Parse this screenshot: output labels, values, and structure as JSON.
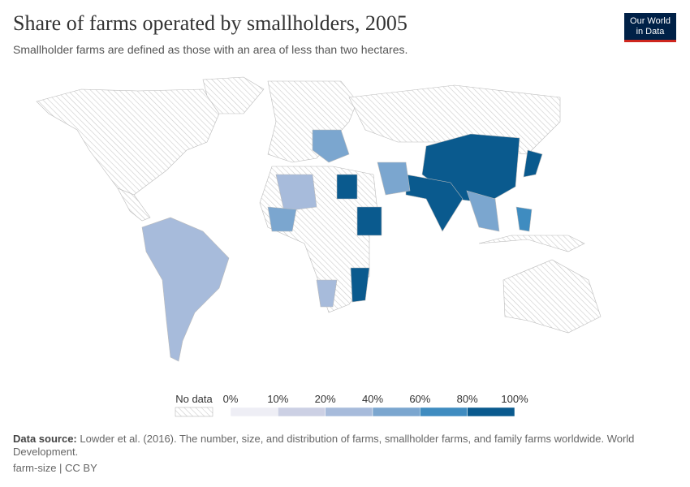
{
  "header": {
    "title": "Share of farms operated by smallholders, 2005",
    "subtitle": "Smallholder farms are defined as those with an area of less than two hectares.",
    "logo": [
      "Our World",
      "in Data"
    ]
  },
  "legend": {
    "no_data": "No data",
    "labels": [
      "0%",
      "10%",
      "20%",
      "40%",
      "60%",
      "80%",
      "100%"
    ],
    "colors": [
      "#eeeef5",
      "#ccd0e4",
      "#a7bbdb",
      "#7ba6cf",
      "#3f8cc0",
      "#0a5a8e"
    ]
  },
  "footer": {
    "source_label": "Data source:",
    "source": "Lowder et al. (2016). The number, size, and distribution of farms, smallholder farms, and family farms worldwide. World Development.",
    "id": "farm-size | CC BY"
  }
}
